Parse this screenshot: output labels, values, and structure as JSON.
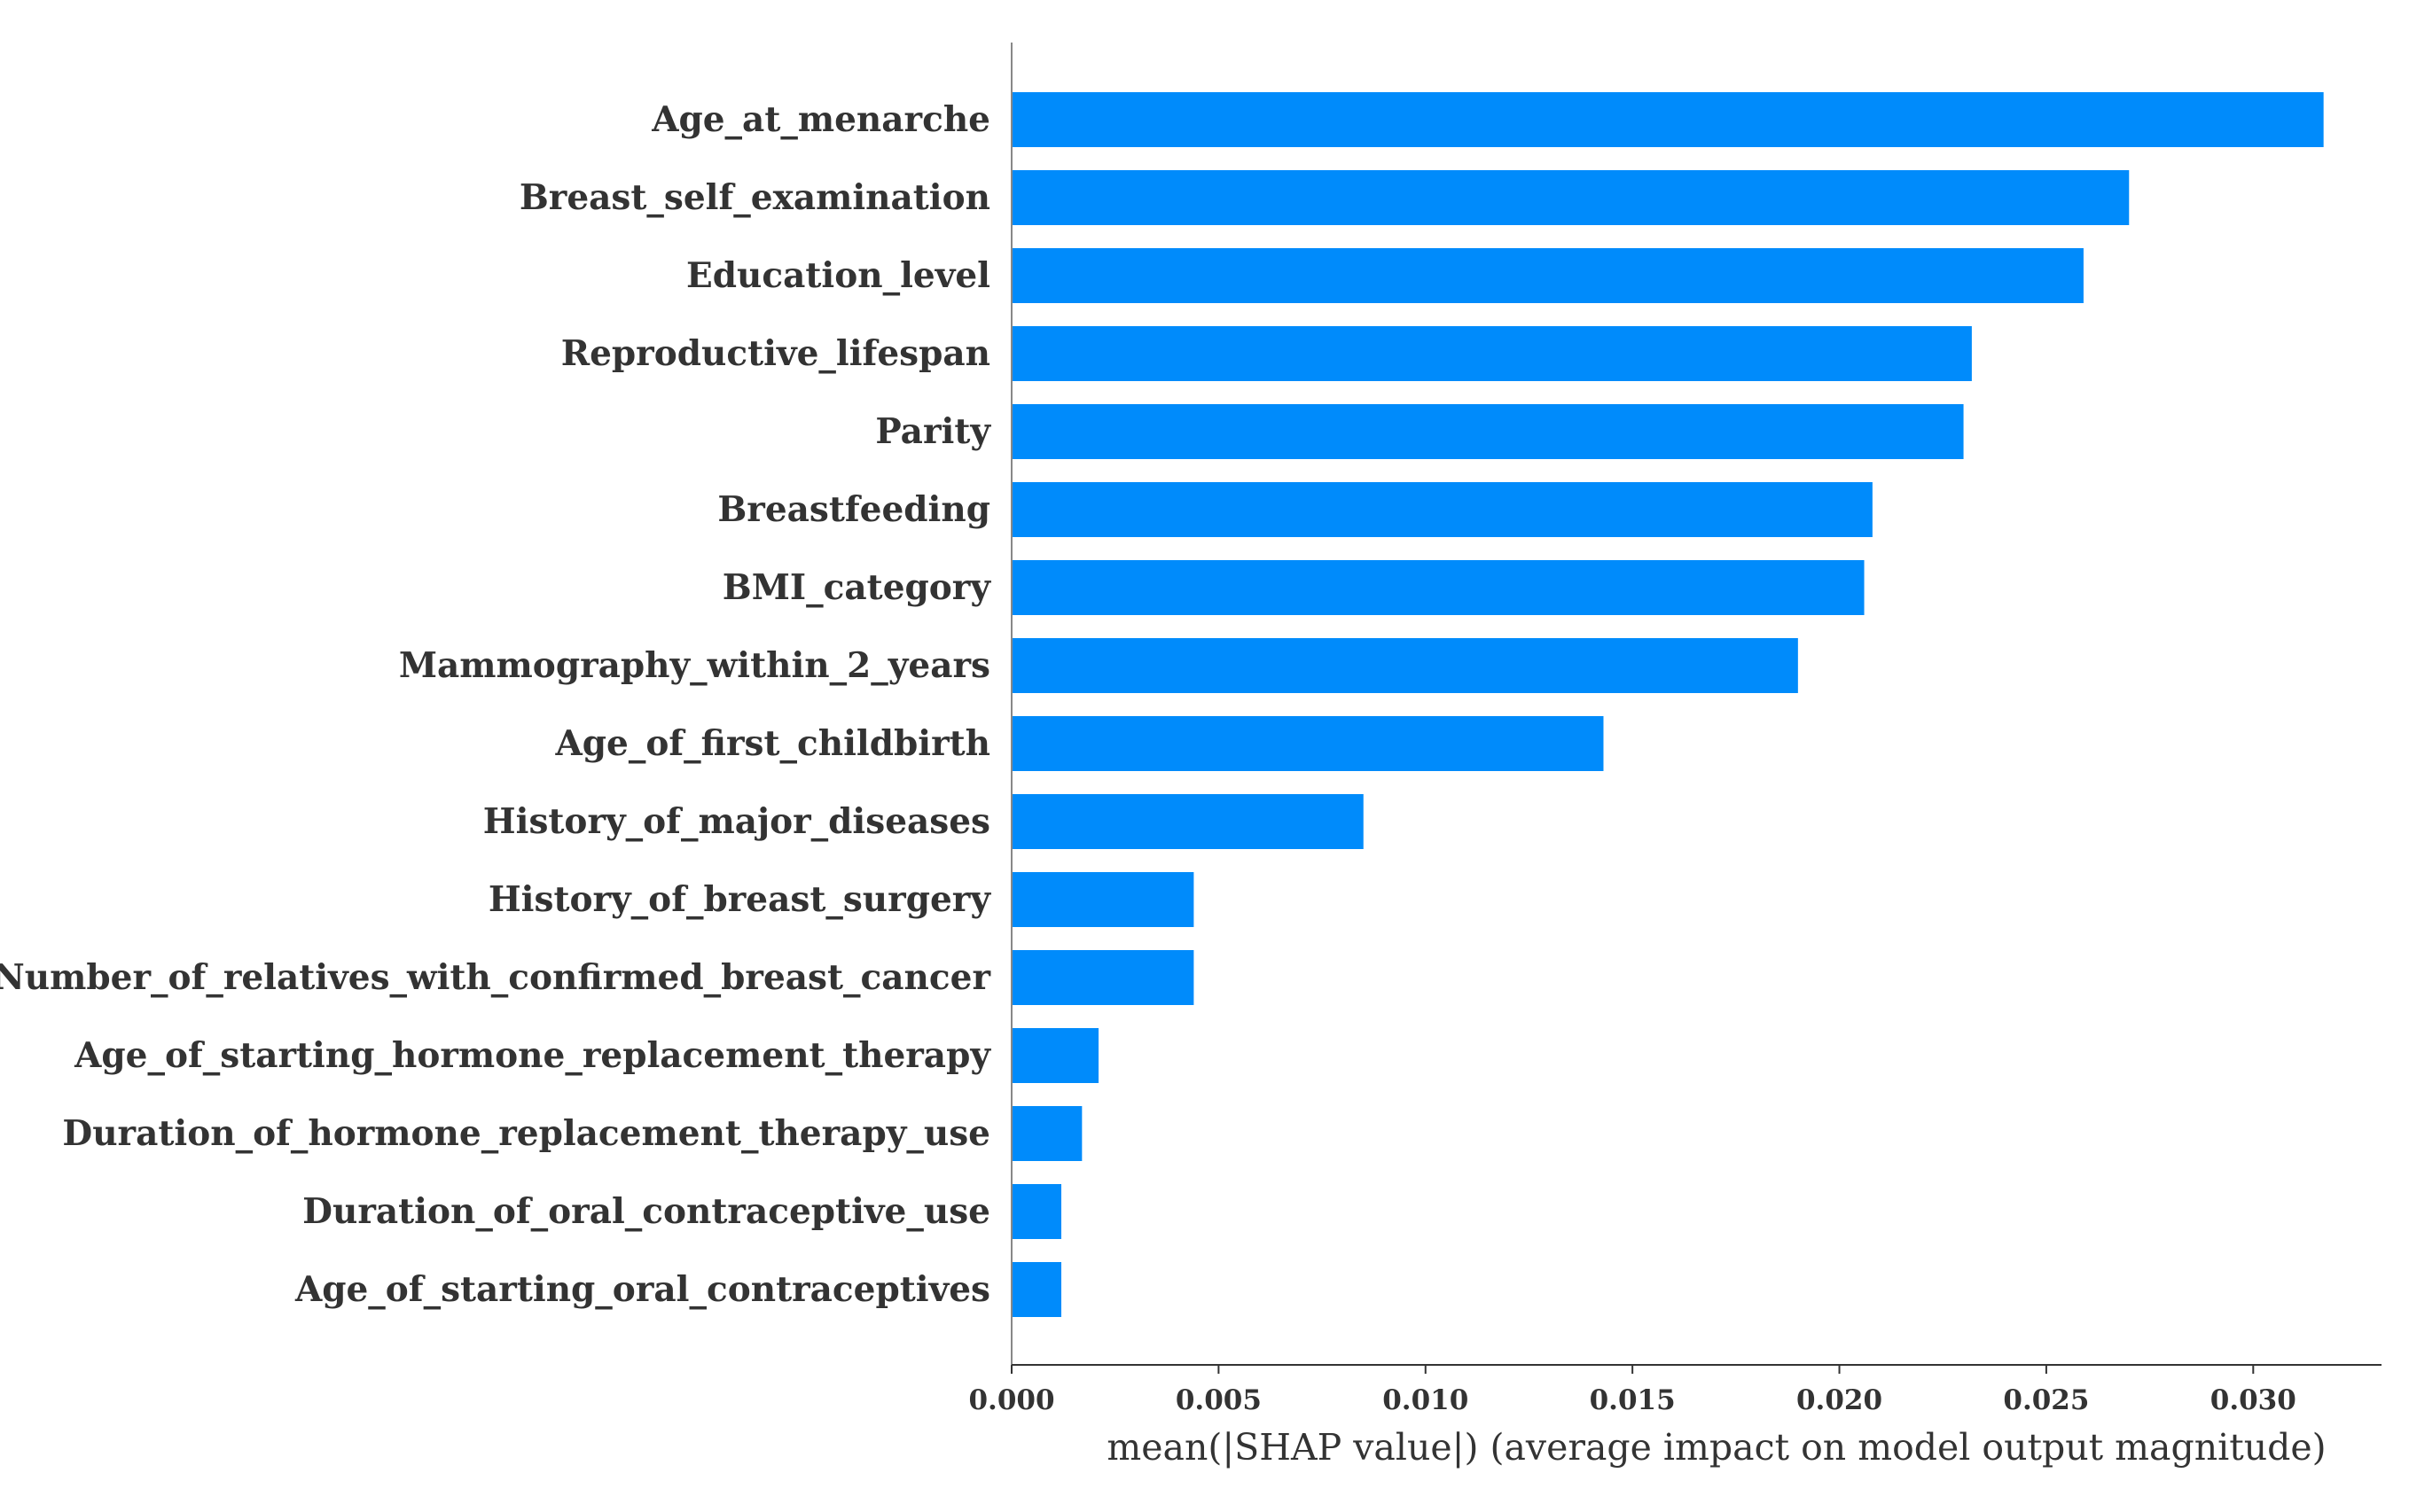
{
  "chart_data": {
    "type": "bar",
    "orientation": "horizontal",
    "title": "",
    "xlabel": "mean(|SHAP value|) (average impact on model output magnitude)",
    "ylabel": "",
    "xlim": [
      0,
      0.0331
    ],
    "xticks": [
      0.0,
      0.005,
      0.01,
      0.015,
      0.02,
      0.025,
      0.03
    ],
    "xtick_labels": [
      "0.000",
      "0.005",
      "0.010",
      "0.015",
      "0.020",
      "0.025",
      "0.030"
    ],
    "grid": false,
    "legend": "none",
    "bar_color": "#008bfb",
    "categories": [
      "Age_at_menarche",
      "Breast_self_examination",
      "Education_level",
      "Reproductive_lifespan",
      "Parity",
      "Breastfeeding",
      "BMI_category",
      "Mammography_within_2_years",
      "Age_of_first_childbirth",
      "History_of_major_diseases",
      "History_of_breast_surgery",
      "Number_of_relatives_with_confirmed_breast_cancer",
      "Age_of_starting_hormone_replacement_therapy",
      "Duration_of_hormone_replacement_therapy_use",
      "Duration_of_oral_contraceptive_use",
      "Age_of_starting_oral_contraceptives"
    ],
    "values": [
      0.0317,
      0.027,
      0.0259,
      0.0232,
      0.023,
      0.0208,
      0.0206,
      0.019,
      0.0143,
      0.0085,
      0.0044,
      0.0044,
      0.0021,
      0.0017,
      0.0012,
      0.0012
    ]
  }
}
